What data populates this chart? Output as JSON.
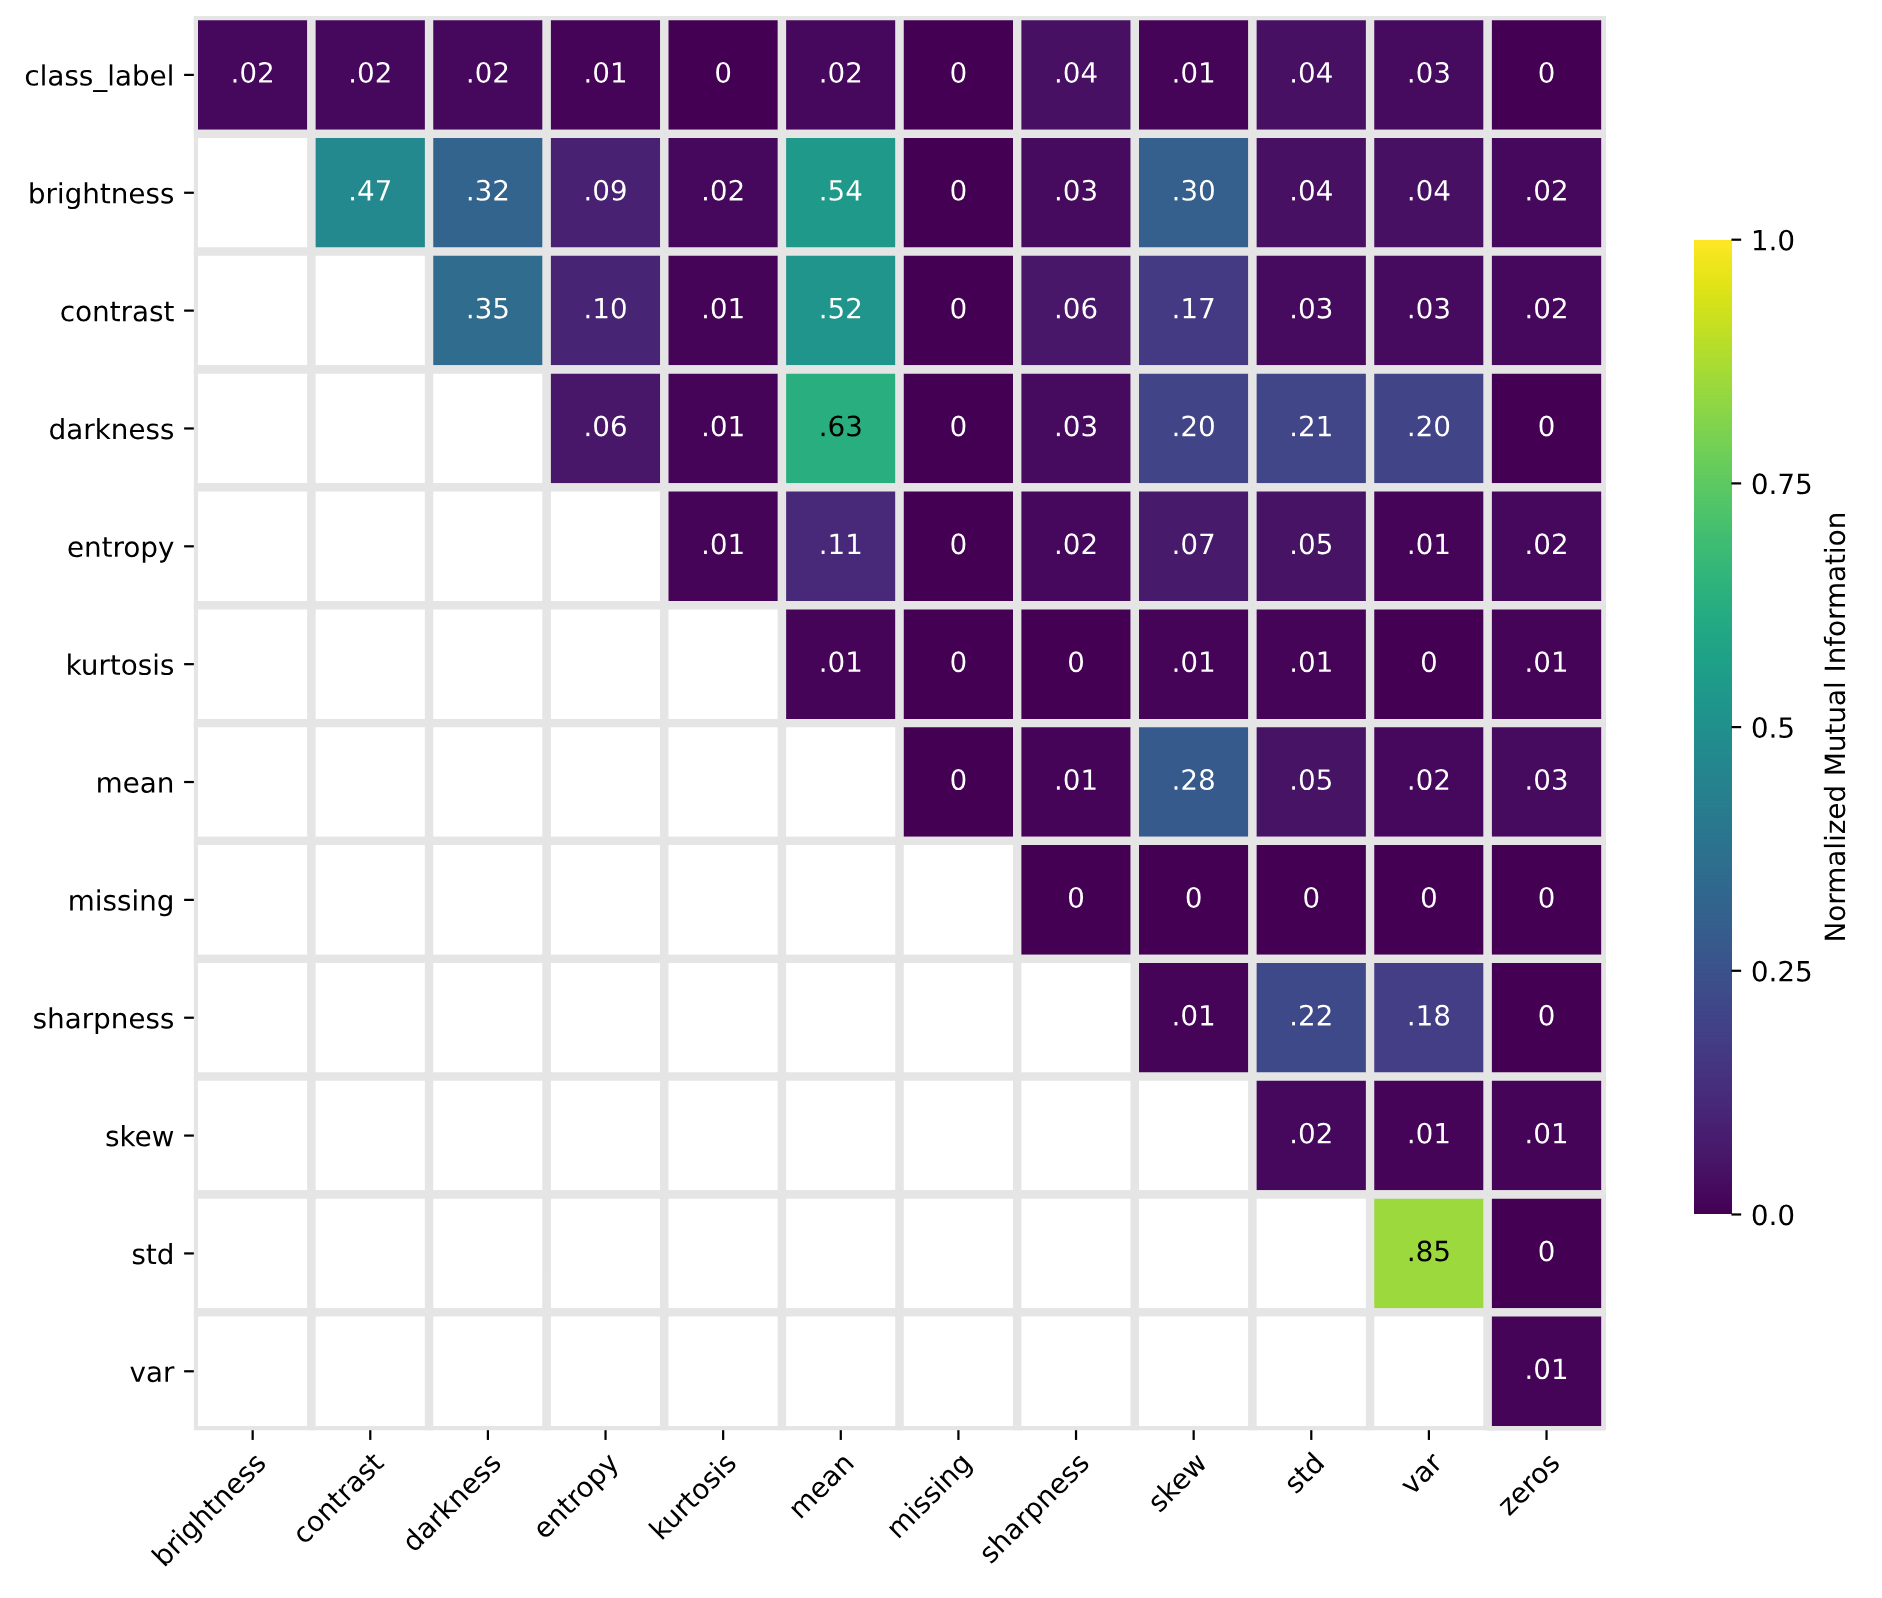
{
  "chart_data": {
    "type": "heatmap",
    "clabel": "Normalized Mutual Information",
    "categories": [
      "brightness",
      "contrast",
      "darkness",
      "entropy",
      "kurtosis",
      "mean",
      "missing",
      "sharpness",
      "skew",
      "std",
      "var",
      "zeros"
    ],
    "y_categories": [
      "class_label",
      "brightness",
      "contrast",
      "darkness",
      "entropy",
      "kurtosis",
      "mean",
      "missing",
      "sharpness",
      "skew",
      "std",
      "var"
    ],
    "cells": [
      [
        0.02,
        0.02,
        0.02,
        0.01,
        0,
        0.02,
        0,
        0.04,
        0.01,
        0.04,
        0.03,
        0
      ],
      [
        null,
        0.47,
        0.32,
        0.09,
        0.02,
        0.54,
        0,
        0.03,
        0.3,
        0.04,
        0.04,
        0.02
      ],
      [
        null,
        null,
        0.35,
        0.1,
        0.01,
        0.52,
        0,
        0.06,
        0.17,
        0.03,
        0.03,
        0.02
      ],
      [
        null,
        null,
        null,
        0.06,
        0.01,
        0.63,
        0,
        0.03,
        0.2,
        0.21,
        0.2,
        0
      ],
      [
        null,
        null,
        null,
        null,
        0.01,
        0.11,
        0,
        0.02,
        0.07,
        0.05,
        0.01,
        0.02
      ],
      [
        null,
        null,
        null,
        null,
        null,
        0.01,
        0,
        0,
        0.01,
        0.01,
        0,
        0.01
      ],
      [
        null,
        null,
        null,
        null,
        null,
        null,
        0,
        0.01,
        0.28,
        0.05,
        0.02,
        0.03
      ],
      [
        null,
        null,
        null,
        null,
        null,
        null,
        null,
        0,
        0,
        0,
        0,
        0
      ],
      [
        null,
        null,
        null,
        null,
        null,
        null,
        null,
        null,
        0.01,
        0.22,
        0.18,
        0
      ],
      [
        null,
        null,
        null,
        null,
        null,
        null,
        null,
        null,
        null,
        0.02,
        0.01,
        0.01
      ],
      [
        null,
        null,
        null,
        null,
        null,
        null,
        null,
        null,
        null,
        null,
        0.85,
        0
      ],
      [
        null,
        null,
        null,
        null,
        null,
        null,
        null,
        null,
        null,
        null,
        null,
        0.01
      ]
    ],
    "cell_labels": [
      [
        ".02",
        ".02",
        ".02",
        ".01",
        "0",
        ".02",
        "0",
        ".04",
        ".01",
        ".04",
        ".03",
        "0"
      ],
      [
        null,
        ".47",
        ".32",
        ".09",
        ".02",
        ".54",
        "0",
        ".03",
        ".30",
        ".04",
        ".04",
        ".02"
      ],
      [
        null,
        null,
        ".35",
        ".10",
        ".01",
        ".52",
        "0",
        ".06",
        ".17",
        ".03",
        ".03",
        ".02"
      ],
      [
        null,
        null,
        null,
        ".06",
        ".01",
        ".63",
        "0",
        ".03",
        ".20",
        ".21",
        ".20",
        "0"
      ],
      [
        null,
        null,
        null,
        null,
        ".01",
        ".11",
        "0",
        ".02",
        ".07",
        ".05",
        ".01",
        ".02"
      ],
      [
        null,
        null,
        null,
        null,
        null,
        ".01",
        "0",
        "0",
        ".01",
        ".01",
        "0",
        ".01"
      ],
      [
        null,
        null,
        null,
        null,
        null,
        null,
        "0",
        ".01",
        ".28",
        ".05",
        ".02",
        ".03"
      ],
      [
        null,
        null,
        null,
        null,
        null,
        null,
        null,
        "0",
        "0",
        "0",
        "0",
        "0"
      ],
      [
        null,
        null,
        null,
        null,
        null,
        null,
        null,
        null,
        ".01",
        ".22",
        ".18",
        "0"
      ],
      [
        null,
        null,
        null,
        null,
        null,
        null,
        null,
        null,
        null,
        ".02",
        ".01",
        ".01"
      ],
      [
        null,
        null,
        null,
        null,
        null,
        null,
        null,
        null,
        null,
        null,
        ".85",
        "0"
      ],
      [
        null,
        null,
        null,
        null,
        null,
        null,
        null,
        null,
        null,
        null,
        null,
        ".01"
      ]
    ],
    "clim": [
      0,
      1
    ],
    "cticks": [
      {
        "value": 0,
        "label": "0.0"
      },
      {
        "value": 0.25,
        "label": "0.25"
      },
      {
        "value": 0.5,
        "label": "0.5"
      },
      {
        "value": 0.75,
        "label": "0.75"
      },
      {
        "value": 1,
        "label": "1.0"
      }
    ]
  }
}
